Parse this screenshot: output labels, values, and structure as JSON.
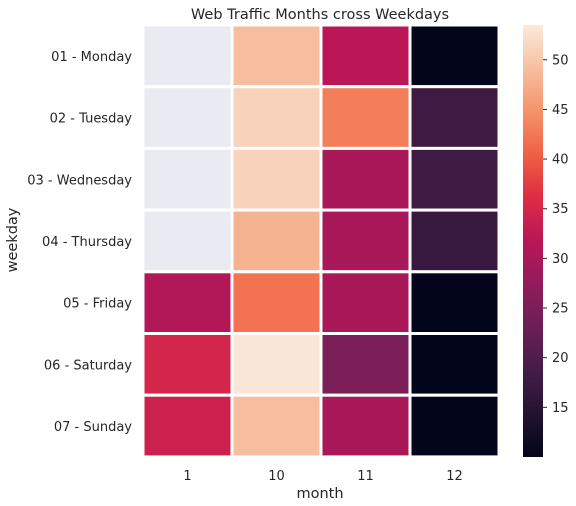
{
  "chart_data": {
    "type": "heatmap",
    "title": "Web Traffic Months cross Weekdays",
    "xlabel": "month",
    "ylabel": "weekday",
    "x_categories": [
      "1",
      "10",
      "11",
      "12"
    ],
    "y_categories": [
      "01 - Monday",
      "02 - Tuesday",
      "03 - Wednesday",
      "04 - Thursday",
      "05 - Friday",
      "06 - Saturday",
      "07 - Sunday"
    ],
    "values": [
      [
        null,
        49,
        32,
        10
      ],
      [
        null,
        51,
        43,
        18
      ],
      [
        null,
        51,
        30,
        18
      ],
      [
        null,
        48,
        30,
        17
      ],
      [
        31,
        42,
        30,
        10
      ],
      [
        35,
        53,
        25,
        10
      ],
      [
        34,
        49,
        30,
        10
      ]
    ],
    "missing_color": "#eaeaf2",
    "colorbar": {
      "vmin": 10,
      "vmax": 53.5,
      "ticks": [
        15,
        20,
        25,
        30,
        35,
        40,
        45,
        50
      ],
      "colormap": "rocket"
    },
    "cell_border_color": "#ffffff"
  }
}
